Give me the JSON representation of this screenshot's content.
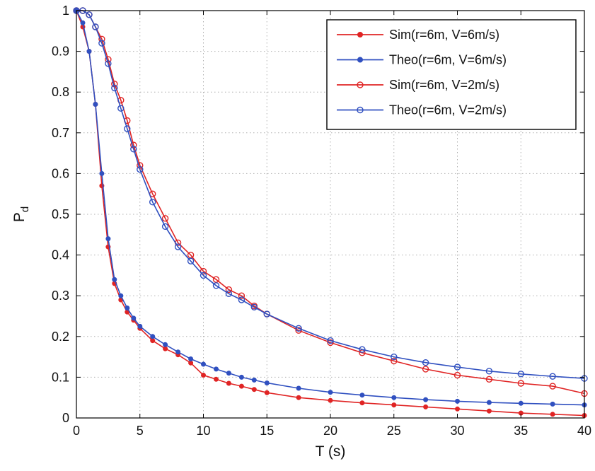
{
  "chart_data": {
    "type": "line",
    "title": "",
    "xlabel": "T (s)",
    "ylabel_main": "P",
    "ylabel_sub": "d",
    "xlim": [
      0,
      40
    ],
    "ylim": [
      0,
      1
    ],
    "xticks": [
      0,
      5,
      10,
      15,
      20,
      25,
      30,
      35,
      40
    ],
    "yticks": [
      0,
      0.1,
      0.2,
      0.3,
      0.4,
      0.5,
      0.6,
      0.7,
      0.8,
      0.9,
      1
    ],
    "grid": true,
    "legend_position": "top-right",
    "colors": {
      "red": "#e02424",
      "blue": "#3050c0",
      "grid": "#b0b0b0",
      "axes": "#000000"
    },
    "series": [
      {
        "name": "Sim(r=6m, V=6m/s)",
        "color": "#e02424",
        "marker": "filled",
        "x": [
          0,
          0.5,
          1,
          1.5,
          2,
          2.5,
          3,
          3.5,
          4,
          4.5,
          5,
          6,
          7,
          8,
          9,
          10,
          11,
          12,
          13,
          14,
          15,
          17.5,
          20,
          22.5,
          25,
          27.5,
          30,
          32.5,
          35,
          37.5,
          40
        ],
        "y": [
          1,
          0.96,
          0.9,
          0.77,
          0.57,
          0.42,
          0.33,
          0.29,
          0.26,
          0.24,
          0.22,
          0.19,
          0.17,
          0.155,
          0.135,
          0.105,
          0.095,
          0.085,
          0.078,
          0.07,
          0.062,
          0.05,
          0.043,
          0.037,
          0.032,
          0.027,
          0.022,
          0.017,
          0.012,
          0.009,
          0.006
        ]
      },
      {
        "name": "Theo(r=6m, V=6m/s)",
        "color": "#3050c0",
        "marker": "filled",
        "x": [
          0,
          0.5,
          1,
          1.5,
          2,
          2.5,
          3,
          3.5,
          4,
          4.5,
          5,
          6,
          7,
          8,
          9,
          10,
          11,
          12,
          13,
          14,
          15,
          17.5,
          20,
          22.5,
          25,
          27.5,
          30,
          32.5,
          35,
          37.5,
          40
        ],
        "y": [
          1,
          0.97,
          0.9,
          0.77,
          0.6,
          0.44,
          0.34,
          0.3,
          0.27,
          0.245,
          0.225,
          0.2,
          0.18,
          0.162,
          0.145,
          0.132,
          0.12,
          0.11,
          0.1,
          0.093,
          0.086,
          0.073,
          0.063,
          0.056,
          0.05,
          0.045,
          0.041,
          0.038,
          0.036,
          0.034,
          0.032
        ]
      },
      {
        "name": "Sim(r=6m, V=2m/s)",
        "color": "#e02424",
        "marker": "open",
        "x": [
          0,
          0.5,
          1,
          1.5,
          2,
          2.5,
          3,
          3.5,
          4,
          4.5,
          5,
          6,
          7,
          8,
          9,
          10,
          11,
          12,
          13,
          14,
          15,
          17.5,
          20,
          22.5,
          25,
          27.5,
          30,
          32.5,
          35,
          37.5,
          40
        ],
        "y": [
          1,
          1,
          0.99,
          0.96,
          0.93,
          0.88,
          0.82,
          0.78,
          0.73,
          0.67,
          0.62,
          0.55,
          0.49,
          0.43,
          0.4,
          0.36,
          0.34,
          0.315,
          0.3,
          0.275,
          0.255,
          0.215,
          0.185,
          0.16,
          0.14,
          0.12,
          0.105,
          0.095,
          0.085,
          0.078,
          0.06
        ]
      },
      {
        "name": "Theo(r=6m, V=2m/s)",
        "color": "#3050c0",
        "marker": "open",
        "x": [
          0,
          0.5,
          1,
          1.5,
          2,
          2.5,
          3,
          3.5,
          4,
          4.5,
          5,
          6,
          7,
          8,
          9,
          10,
          11,
          12,
          13,
          14,
          15,
          17.5,
          20,
          22.5,
          25,
          27.5,
          30,
          32.5,
          35,
          37.5,
          40
        ],
        "y": [
          1,
          1,
          0.99,
          0.96,
          0.92,
          0.87,
          0.81,
          0.76,
          0.71,
          0.66,
          0.61,
          0.53,
          0.47,
          0.42,
          0.385,
          0.35,
          0.325,
          0.305,
          0.29,
          0.272,
          0.255,
          0.22,
          0.19,
          0.168,
          0.15,
          0.136,
          0.125,
          0.115,
          0.108,
          0.102,
          0.097
        ]
      }
    ]
  }
}
